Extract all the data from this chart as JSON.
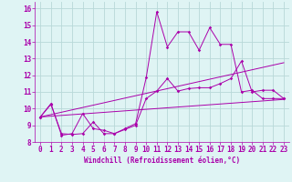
{
  "background_color": "#dff4f4",
  "grid_color": "#b8d8d8",
  "line_color": "#aa00aa",
  "x_label": "Windchill (Refroidissement éolien,°C)",
  "xlim": [
    -0.5,
    23.5
  ],
  "ylim": [
    8,
    16.4
  ],
  "x_ticks": [
    0,
    1,
    2,
    3,
    4,
    5,
    6,
    7,
    8,
    9,
    10,
    11,
    12,
    13,
    14,
    15,
    16,
    17,
    18,
    19,
    20,
    21,
    22,
    23
  ],
  "y_ticks": [
    8,
    9,
    10,
    11,
    12,
    13,
    14,
    15,
    16
  ],
  "line1_x": [
    0,
    1,
    2,
    3,
    4,
    5,
    6,
    7,
    8,
    9,
    10,
    11,
    12,
    13,
    14,
    15,
    16,
    17,
    18,
    19,
    20,
    21,
    22,
    23
  ],
  "line1_y": [
    9.5,
    10.3,
    8.4,
    8.5,
    9.7,
    8.8,
    8.7,
    8.5,
    8.8,
    9.1,
    11.85,
    15.8,
    13.7,
    14.6,
    14.6,
    13.5,
    14.85,
    13.85,
    13.85,
    11.0,
    11.1,
    10.6,
    10.6,
    10.6
  ],
  "line2_x": [
    0,
    1,
    2,
    3,
    4,
    5,
    6,
    7,
    8,
    9,
    10,
    11,
    12,
    13,
    14,
    15,
    16,
    17,
    18,
    19,
    20,
    21,
    22,
    23
  ],
  "line2_y": [
    9.5,
    10.25,
    8.5,
    8.45,
    8.5,
    9.2,
    8.5,
    8.5,
    8.75,
    9.0,
    10.6,
    11.05,
    11.8,
    11.05,
    11.2,
    11.25,
    11.25,
    11.5,
    11.8,
    12.85,
    11.0,
    11.1,
    11.1,
    10.6
  ],
  "line3_x": [
    0,
    23
  ],
  "line3_y": [
    9.5,
    10.55
  ],
  "line4_x": [
    0,
    23
  ],
  "line4_y": [
    9.5,
    12.75
  ],
  "tick_fontsize": 5.5,
  "label_fontsize": 5.5
}
